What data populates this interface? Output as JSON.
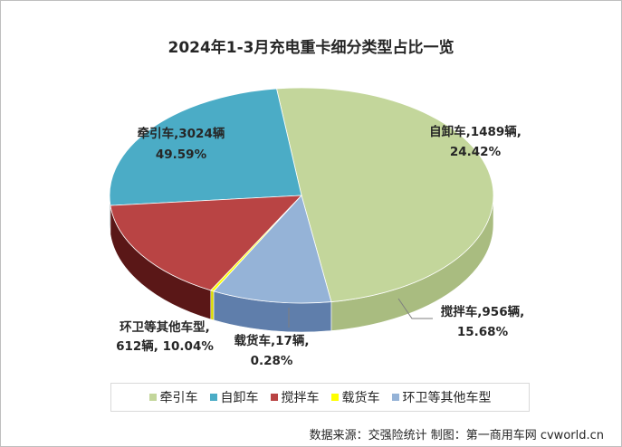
{
  "chart_data": {
    "type": "pie",
    "title": "2024年1-3月充电重卡细分类型占比一览",
    "slices": [
      {
        "name": "牵引车",
        "value": 3024,
        "percent": "49.59%",
        "label_line1": "牵引车,3024辆",
        "label_line2": "49.59%",
        "color": "#c3d69b",
        "side_color": "#a9bc80"
      },
      {
        "name": "自卸车",
        "value": 1489,
        "percent": "24.42%",
        "label_line1": "自卸车,1489辆,",
        "label_line2": "24.42%",
        "color": "#4bacc6",
        "side_color": "#215966"
      },
      {
        "name": "搅拌车",
        "value": 956,
        "percent": "15.68%",
        "label_line1": "搅拌车,956辆,",
        "label_line2": "15.68%",
        "color": "#b94444",
        "side_color": "#5a1717"
      },
      {
        "name": "载货车",
        "value": 17,
        "percent": "0.28%",
        "label_line1": "载货车,17辆,",
        "label_line2": "0.28%",
        "color": "#ffff00",
        "side_color": "#d8d800"
      },
      {
        "name": "环卫等其他车型",
        "value": 612,
        "percent": "10.04%",
        "label_line1": "环卫等其他车型,",
        "label_line2": "612辆, 10.04%",
        "color": "#95b3d7",
        "side_color": "#5f7eab"
      }
    ],
    "legend_position": "bottom"
  },
  "source_note": "数据来源：交强险统计 制图：第一商用车网 cvworld.cn"
}
